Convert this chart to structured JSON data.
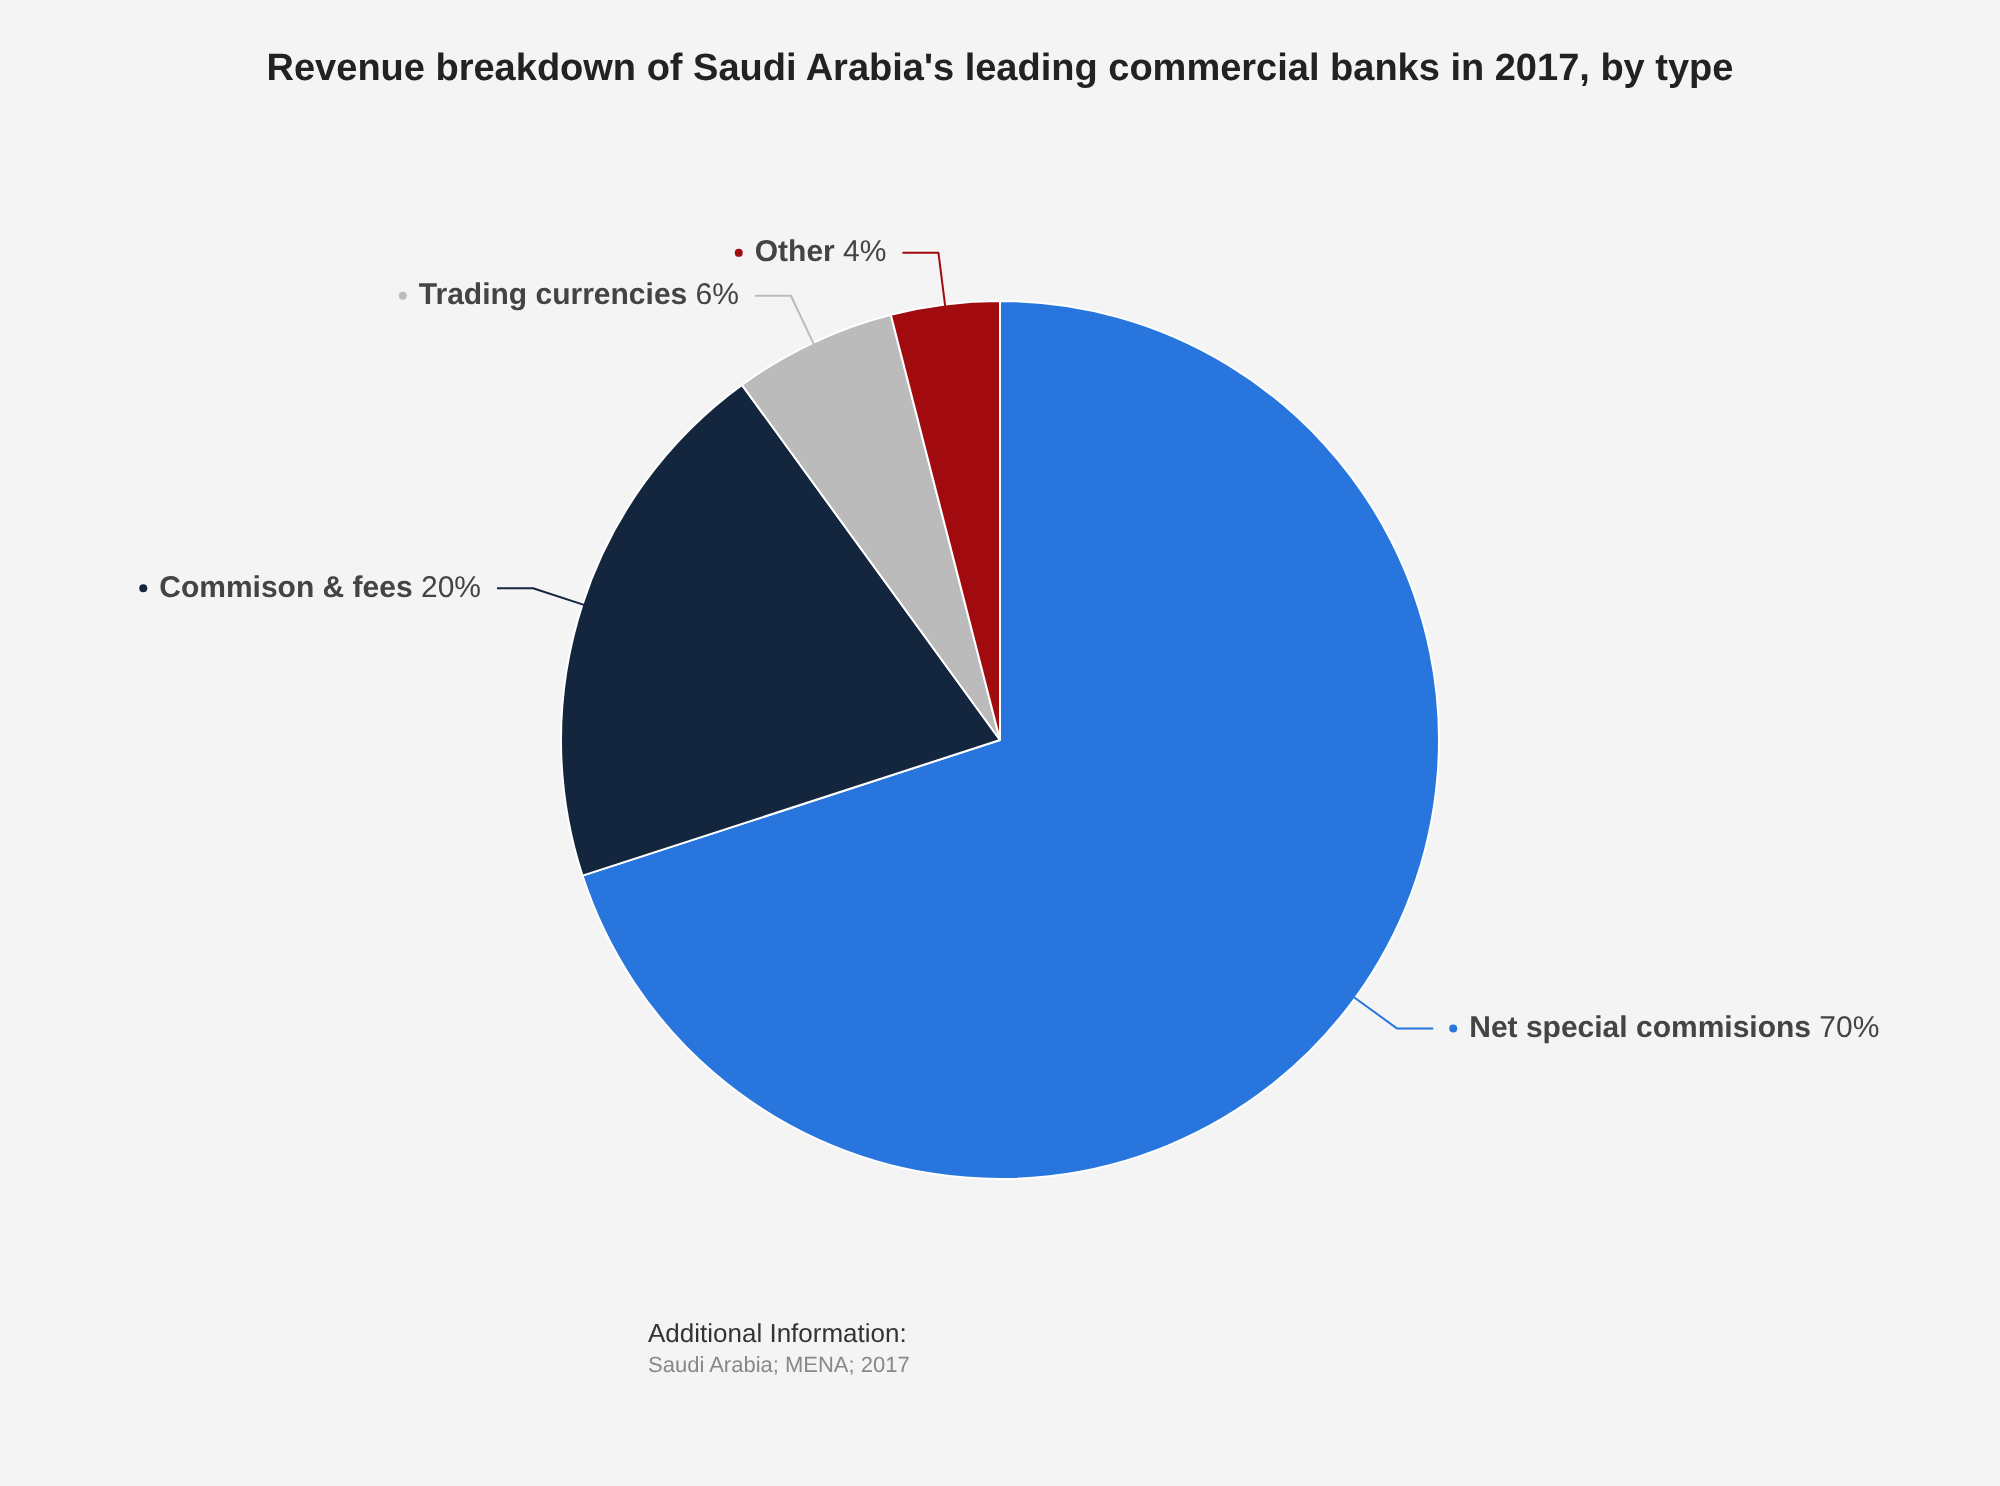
{
  "chart_data": {
    "type": "pie",
    "title": "Revenue breakdown of Saudi Arabia's leading commercial banks in 2017, by type",
    "categories": [
      "Net special commisions",
      "Commison & fees",
      "Trading currencies",
      "Other"
    ],
    "values": [
      70,
      20,
      6,
      4
    ],
    "colors": [
      "#2876dd",
      "#13263d",
      "#bbbbbb",
      "#a10a0e"
    ],
    "value_labels": [
      "70%",
      "20%",
      "6%",
      "4%"
    ],
    "legend": "right",
    "annotations": [
      "Additional Information:",
      "Saudi Arabia; MENA; 2017"
    ]
  }
}
